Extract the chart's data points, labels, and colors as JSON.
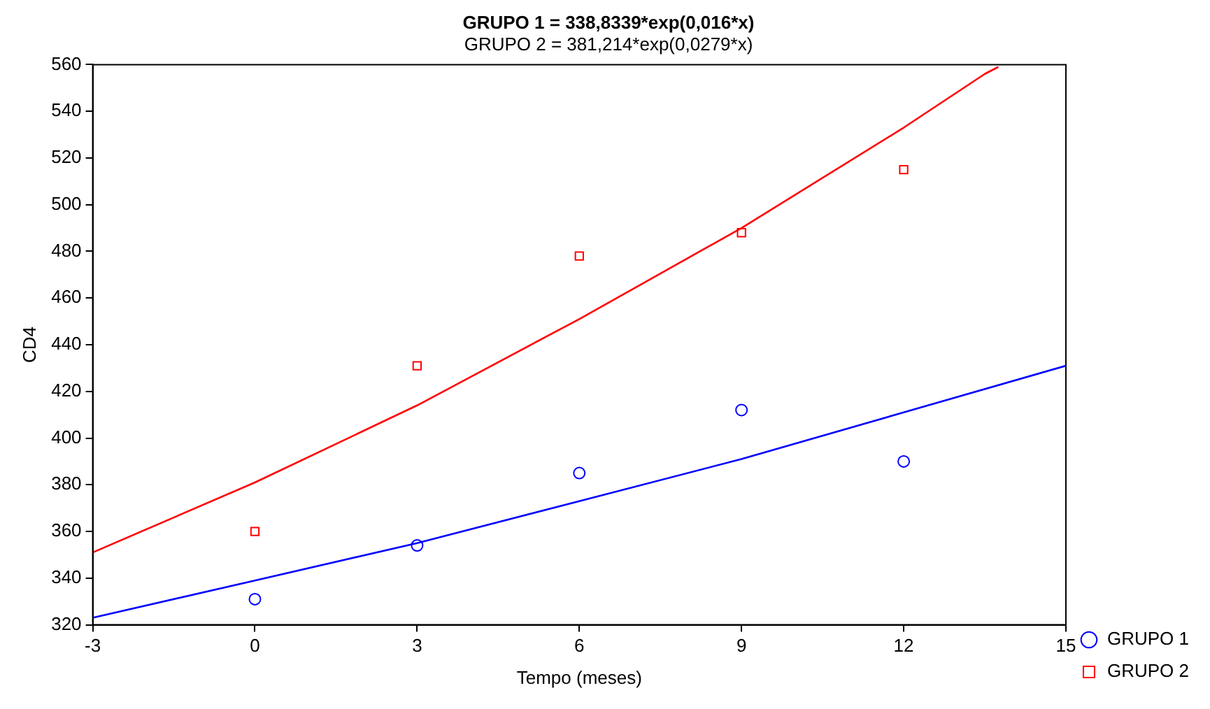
{
  "chart_data": {
    "type": "scatter",
    "title": "GRUPO 1 = 338,8339*exp(0,016*x)",
    "subtitle": "GRUPO 2 = 381,214*exp(0,0279*x)",
    "xlabel": "Tempo (meses)",
    "ylabel": "CD4",
    "x": [
      0,
      3,
      6,
      9,
      12
    ],
    "series": [
      {
        "name": "GRUPO 1",
        "color": "#0000ff",
        "marker": "circle",
        "values": [
          331,
          354,
          385,
          412,
          390
        ]
      },
      {
        "name": "GRUPO 2",
        "color": "#ff0000",
        "marker": "square",
        "values": [
          360,
          431,
          478,
          488,
          515
        ]
      },
      {
        "type": "line",
        "color": "#0000ff",
        "marker": "none",
        "x": [
          -3,
          0,
          3,
          6,
          9,
          12,
          15
        ],
        "values": [
          323,
          339,
          355,
          373,
          391,
          411,
          431
        ]
      },
      {
        "type": "line",
        "color": "#ff0000",
        "marker": "none",
        "x": [
          -3,
          0,
          3,
          6,
          9,
          12,
          13.5,
          13.75
        ],
        "values": [
          351,
          381,
          414,
          451,
          490,
          533,
          556,
          559
        ]
      }
    ],
    "xlim": [
      -3,
      15
    ],
    "xticks": [
      -3,
      0,
      3,
      6,
      9,
      12,
      15
    ],
    "ylim": [
      320,
      560
    ],
    "yticks": [
      320,
      340,
      360,
      380,
      400,
      420,
      440,
      460,
      480,
      500,
      520,
      540,
      560
    ],
    "grid": false,
    "legend": "bottom right"
  }
}
